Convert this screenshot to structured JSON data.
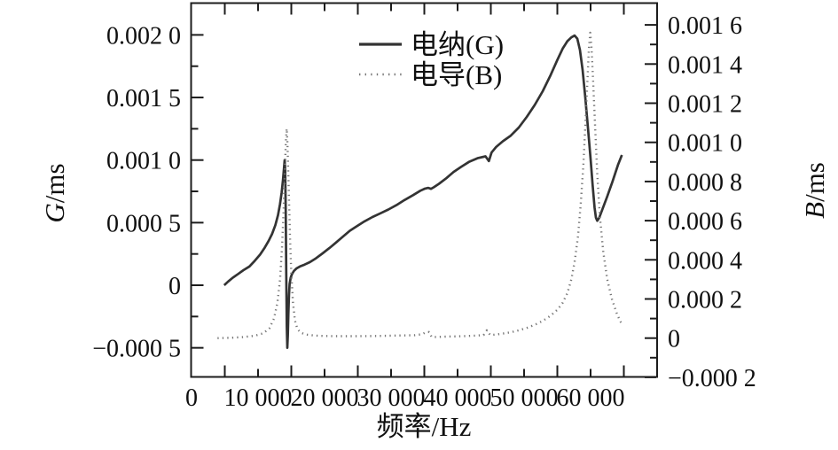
{
  "figure": {
    "background": "#ffffff"
  },
  "chart_data": {
    "type": "line",
    "title": "",
    "xlabel": "频率/Hz",
    "ylabel_left": "G/ms",
    "ylabel_right": "B/ms",
    "axis_titles": {
      "left_var": "G",
      "left_unit": "/ms",
      "right_var": "B",
      "right_unit": "/ms",
      "x": "频率/Hz"
    },
    "xlim": [
      0,
      70000
    ],
    "ylim_left": [
      -0.00074,
      0.00226
    ],
    "ylim_right": [
      -0.0002,
      0.001715
    ],
    "grid": false,
    "legend_position": "upper-center",
    "x_tick_values": [
      0,
      10000,
      20000,
      30000,
      40000,
      50000,
      60000
    ],
    "x_tick_labels": [
      "0",
      "10 000",
      "20 000",
      "30 000",
      "40 000",
      "50 000",
      "60 000"
    ],
    "x_minor_step": 5000,
    "left_tick_values": [
      0.002,
      0.0015,
      0.001,
      0.0005,
      0,
      -0.0005
    ],
    "left_tick_labels": [
      "0.002 0",
      "0.001 5",
      "0.001 0",
      "0.000 5",
      "0",
      "−0.000 5"
    ],
    "left_minor_values": [
      0.00175,
      0.00125,
      0.00075,
      0.00025,
      -0.00025
    ],
    "right_tick_values": [
      0.0016,
      0.0014,
      0.0012,
      0.001,
      0.0008,
      0.0006,
      0.0004,
      0.0002,
      0,
      -0.0002
    ],
    "right_tick_labels": [
      "0.001 6",
      "0.001 4",
      "0.001 2",
      "0.001 0",
      "0.000 8",
      "0.000 6",
      "0.000 4",
      "0.000 2",
      "0",
      "−0.000 2"
    ],
    "right_minor_values": [
      0.0015,
      0.0013,
      0.0011,
      0.0009,
      0.0007,
      0.0005,
      0.0003,
      0.0001,
      -0.0001
    ],
    "colors": {
      "solid_series": "#333333",
      "dotted_series": "#777777",
      "axis": "#1c1c1c"
    },
    "legend": [
      {
        "label": "电纳(G)",
        "style": "solid"
      },
      {
        "label": "电导(B)",
        "style": "dotted"
      }
    ],
    "series": [
      {
        "name": "电纳(G)",
        "axis": "left",
        "style": "solid",
        "points": [
          [
            4900,
            0.0
          ],
          [
            5500,
            3e-05
          ],
          [
            6200,
            6e-05
          ],
          [
            7000,
            9e-05
          ],
          [
            7800,
            0.00012
          ],
          [
            8700,
            0.00015
          ],
          [
            9500,
            0.000195
          ],
          [
            10300,
            0.000245
          ],
          [
            11000,
            0.0003
          ],
          [
            11600,
            0.000355
          ],
          [
            12100,
            0.00041
          ],
          [
            12600,
            0.00048
          ],
          [
            13000,
            0.00056
          ],
          [
            13300,
            0.00065
          ],
          [
            13550,
            0.00074
          ],
          [
            13750,
            0.00084
          ],
          [
            13900,
            0.00094
          ],
          [
            14000,
            0.001
          ],
          [
            14080,
            0.00092
          ],
          [
            14160,
            0.0006
          ],
          [
            14240,
            0.0001
          ],
          [
            14320,
            -0.00033
          ],
          [
            14400,
            -0.0005
          ],
          [
            14480,
            -0.0004
          ],
          [
            14560,
            -0.00023
          ],
          [
            14650,
            -8e-05
          ],
          [
            14750,
            1e-05
          ],
          [
            14900,
            6e-05
          ],
          [
            15100,
            9e-05
          ],
          [
            15400,
            0.000115
          ],
          [
            15800,
            0.000135
          ],
          [
            16300,
            0.00015
          ],
          [
            17000,
            0.000165
          ],
          [
            17800,
            0.000185
          ],
          [
            18700,
            0.000215
          ],
          [
            19700,
            0.000255
          ],
          [
            20800,
            0.0003
          ],
          [
            21800,
            0.000345
          ],
          [
            22800,
            0.00039
          ],
          [
            23800,
            0.000435
          ],
          [
            24800,
            0.00047
          ],
          [
            26000,
            0.00051
          ],
          [
            27200,
            0.000545
          ],
          [
            28400,
            0.000575
          ],
          [
            29600,
            0.000605
          ],
          [
            30800,
            0.00064
          ],
          [
            32000,
            0.00068
          ],
          [
            33300,
            0.00072
          ],
          [
            34400,
            0.000755
          ],
          [
            35100,
            0.000772
          ],
          [
            35600,
            0.000778
          ],
          [
            36000,
            0.00077
          ],
          [
            36400,
            0.000782
          ],
          [
            37200,
            0.00081
          ],
          [
            38300,
            0.000855
          ],
          [
            39400,
            0.000905
          ],
          [
            40500,
            0.000945
          ],
          [
            41700,
            0.000985
          ],
          [
            43000,
            0.001015
          ],
          [
            44200,
            0.00103
          ],
          [
            44700,
            0.000992
          ],
          [
            45100,
            0.00106
          ],
          [
            45800,
            0.001105
          ],
          [
            46800,
            0.00115
          ],
          [
            48000,
            0.001195
          ],
          [
            49200,
            0.00126
          ],
          [
            50400,
            0.001345
          ],
          [
            51600,
            0.00144
          ],
          [
            52800,
            0.00155
          ],
          [
            54000,
            0.00168
          ],
          [
            55000,
            0.0018
          ],
          [
            55800,
            0.00189
          ],
          [
            56500,
            0.00195
          ],
          [
            57100,
            0.00198
          ],
          [
            57600,
            0.001995
          ],
          [
            58000,
            0.00197
          ],
          [
            58400,
            0.00188
          ],
          [
            58800,
            0.00172
          ],
          [
            59200,
            0.0015
          ],
          [
            59600,
            0.00126
          ],
          [
            60000,
            0.00101
          ],
          [
            60300,
            0.0008
          ],
          [
            60600,
            0.00062
          ],
          [
            60800,
            0.00054
          ],
          [
            61000,
            0.000515
          ],
          [
            61300,
            0.00054
          ],
          [
            61800,
            0.00061
          ],
          [
            62500,
            0.00071
          ],
          [
            63300,
            0.00083
          ],
          [
            64100,
            0.00096
          ],
          [
            64700,
            0.00104
          ]
        ]
      },
      {
        "name": "电导(B)",
        "axis": "right",
        "style": "dotted",
        "points": [
          [
            3900,
            0.0
          ],
          [
            6000,
            2e-06
          ],
          [
            8000,
            6e-06
          ],
          [
            9500,
            1.2e-05
          ],
          [
            10800,
            2.5e-05
          ],
          [
            11700,
            5e-05
          ],
          [
            12400,
            0.0001
          ],
          [
            12900,
            0.00018
          ],
          [
            13300,
            0.0003
          ],
          [
            13600,
            0.00046
          ],
          [
            13850,
            0.00066
          ],
          [
            14050,
            0.00088
          ],
          [
            14200,
            0.00102
          ],
          [
            14300,
            0.00107
          ],
          [
            14420,
            0.001
          ],
          [
            14600,
            0.00078
          ],
          [
            14800,
            0.00052
          ],
          [
            15000,
            0.00033
          ],
          [
            15250,
            0.00018
          ],
          [
            15550,
            9e-05
          ],
          [
            15900,
            4.8e-05
          ],
          [
            16400,
            2.8e-05
          ],
          [
            17200,
            1.8e-05
          ],
          [
            18500,
            1.3e-05
          ],
          [
            20000,
            1.1e-05
          ],
          [
            22000,
            1e-05
          ],
          [
            25000,
            1e-05
          ],
          [
            28000,
            1.1e-05
          ],
          [
            31000,
            1.3e-05
          ],
          [
            33500,
            1.5e-05
          ],
          [
            34700,
            2e-05
          ],
          [
            35200,
            3e-05
          ],
          [
            35700,
            3.1e-05
          ],
          [
            36100,
            6e-06
          ],
          [
            37000,
            6e-06
          ],
          [
            38500,
            8e-06
          ],
          [
            40000,
            9e-06
          ],
          [
            41500,
            1.1e-05
          ],
          [
            43000,
            1.3e-05
          ],
          [
            43900,
            1.6e-05
          ],
          [
            44400,
            4e-05
          ],
          [
            44900,
            1.6e-05
          ],
          [
            45700,
            1.8e-05
          ],
          [
            46800,
            2.3e-05
          ],
          [
            48000,
            3e-05
          ],
          [
            49200,
            4e-05
          ],
          [
            50400,
            5.2e-05
          ],
          [
            51600,
            6.8e-05
          ],
          [
            52800,
            8.8e-05
          ],
          [
            54000,
            0.000115
          ],
          [
            55000,
            0.000145
          ],
          [
            55800,
            0.00018
          ],
          [
            56500,
            0.00023
          ],
          [
            57100,
            0.0003
          ],
          [
            57600,
            0.00039
          ],
          [
            58100,
            0.00052
          ],
          [
            58500,
            0.00068
          ],
          [
            58900,
            0.00088
          ],
          [
            59200,
            0.00108
          ],
          [
            59500,
            0.0013
          ],
          [
            59750,
            0.00148
          ],
          [
            59950,
            0.00156
          ],
          [
            60150,
            0.00148
          ],
          [
            60400,
            0.0013
          ],
          [
            60700,
            0.00106
          ],
          [
            61000,
            0.00084
          ],
          [
            61400,
            0.00062
          ],
          [
            61900,
            0.00044
          ],
          [
            62500,
            0.0003
          ],
          [
            63200,
            0.0002
          ],
          [
            64000,
            0.00012
          ],
          [
            64700,
            7e-05
          ]
        ]
      }
    ]
  }
}
